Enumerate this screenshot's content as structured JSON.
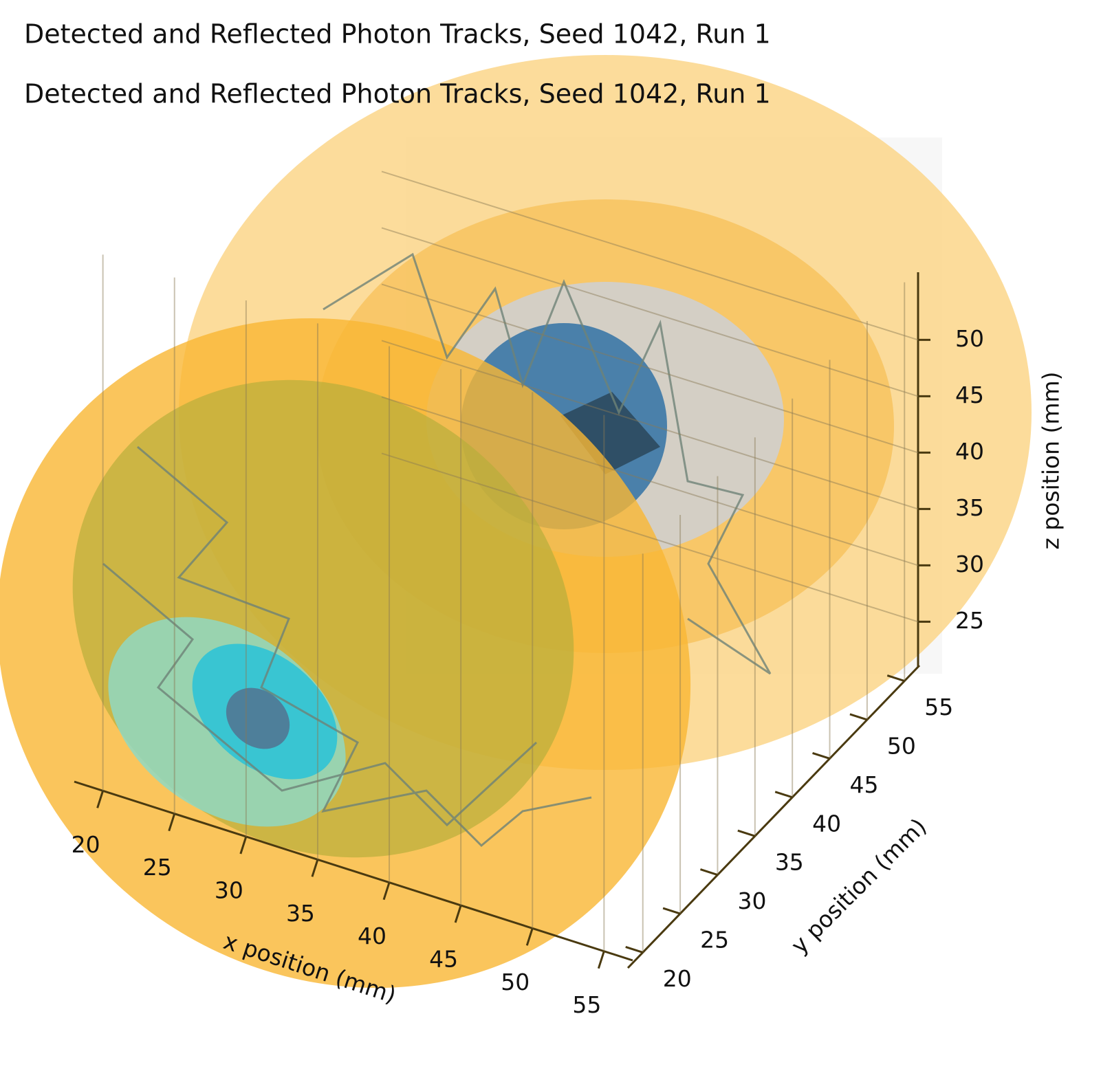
{
  "chart_data": {
    "type": "line3d",
    "titles": [
      "Detected and Reflected Photon Tracks, Seed 1042, Run 1",
      "Detected and Reflected Photon Tracks, Seed 1042, Run 1"
    ],
    "xlabel": "x position (mm)",
    "ylabel": "y position (mm)",
    "zlabel": "z position (mm)",
    "xlim": [
      18,
      57
    ],
    "ylim": [
      18,
      57
    ],
    "zlim": [
      21,
      56
    ],
    "xticks": [
      20,
      25,
      30,
      35,
      40,
      45,
      50,
      55
    ],
    "yticks": [
      20,
      25,
      30,
      35,
      40,
      45,
      50,
      55
    ],
    "zticks": [
      25,
      30,
      35,
      40,
      45,
      50
    ],
    "grid": true
  }
}
